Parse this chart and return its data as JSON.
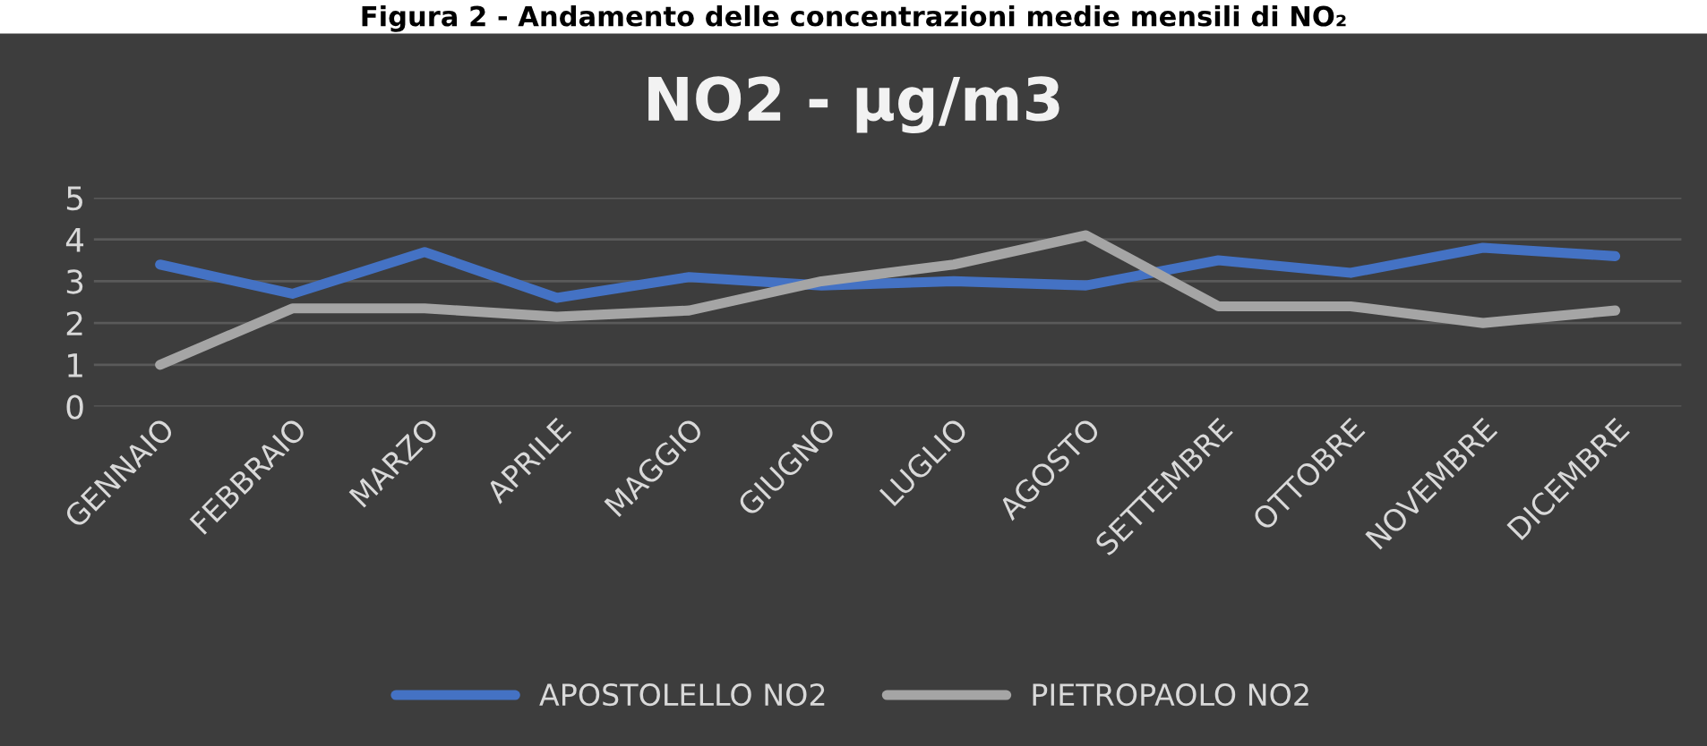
{
  "chart_data": {
    "type": "line",
    "title": "NO2 - µg/m3",
    "annotations": [
      "Figura 2 - Andamento delle concentrazioni medie mensili di NO₂"
    ],
    "categories": [
      "GENNAIO",
      "FEBBRAIO",
      "MARZO",
      "APRILE",
      "MAGGIO",
      "GIUGNO",
      "LUGLIO",
      "AGOSTO",
      "SETTEMBRE",
      "OTTOBRE",
      "NOVEMBRE",
      "DICEMBRE"
    ],
    "series": [
      {
        "name": "APOSTOLELLO NO2",
        "color": "#4472c4",
        "values": [
          3.4,
          2.7,
          3.7,
          2.6,
          3.1,
          2.9,
          3.0,
          2.9,
          3.5,
          3.2,
          3.8,
          3.6
        ]
      },
      {
        "name": "PIETROPAOLO NO2",
        "color": "#a5a5a5",
        "values": [
          1.0,
          2.35,
          2.35,
          2.15,
          2.3,
          3.0,
          3.4,
          4.1,
          2.4,
          2.4,
          2.0,
          2.3
        ]
      }
    ],
    "ylim": [
      0,
      5
    ],
    "yticks": [
      0,
      1,
      2,
      3,
      4,
      5
    ],
    "grid": "y",
    "legend": "bottom",
    "marker": "none",
    "line_style": "solid"
  }
}
